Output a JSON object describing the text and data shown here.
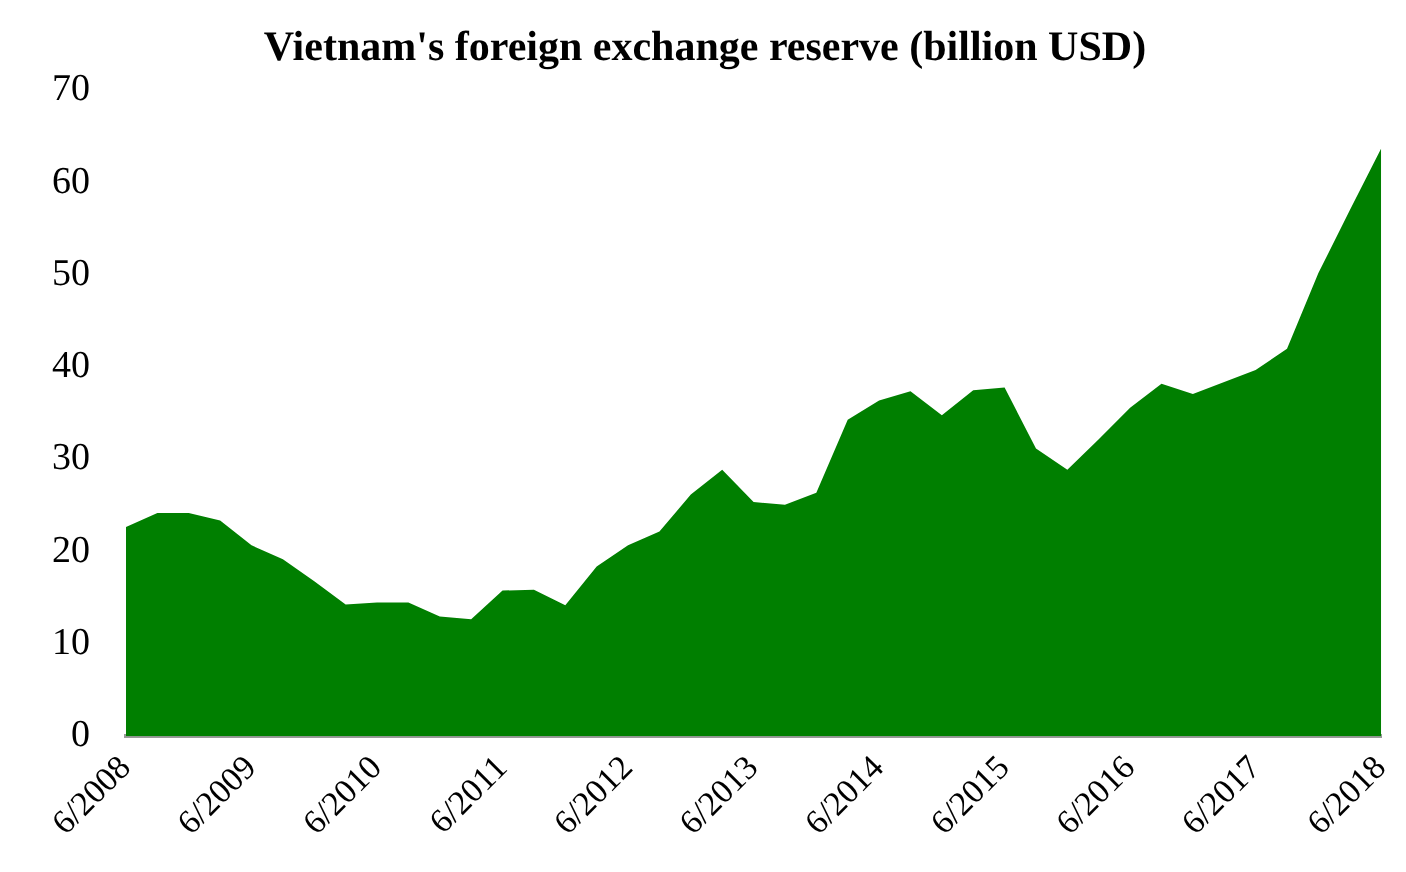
{
  "chart_data": {
    "type": "area",
    "title": "Vietnam's foreign exchange reserve (billion USD)",
    "categories": [
      "6/2008",
      null,
      null,
      null,
      "6/2009",
      null,
      null,
      null,
      "6/2010",
      null,
      null,
      null,
      "6/2011",
      null,
      null,
      null,
      "6/2012",
      null,
      null,
      null,
      "6/2013",
      null,
      null,
      null,
      "6/2014",
      null,
      null,
      null,
      "6/2015",
      null,
      null,
      null,
      "6/2016",
      null,
      null,
      null,
      "6/2017",
      null,
      null,
      null,
      "6/2018"
    ],
    "series": [
      {
        "color": "#007f00",
        "values": [
          22.7,
          24.2,
          24.2,
          23.4,
          20.7,
          19.2,
          16.8,
          14.3,
          14.5,
          14.5,
          13.0,
          12.7,
          15.8,
          15.9,
          14.2,
          18.4,
          20.7,
          22.2,
          26.2,
          28.9,
          25.4,
          25.1,
          26.4,
          34.3,
          36.4,
          37.4,
          34.8,
          37.5,
          37.8,
          31.2,
          28.9,
          32.2,
          35.6,
          38.2,
          37.1,
          38.4,
          39.7,
          42.0,
          50.2,
          57.0,
          63.7
        ]
      }
    ],
    "ylim": [
      0,
      70
    ],
    "yticks": [
      0,
      10,
      20,
      30,
      40,
      50,
      60,
      70
    ],
    "grid": false,
    "legend": false
  }
}
